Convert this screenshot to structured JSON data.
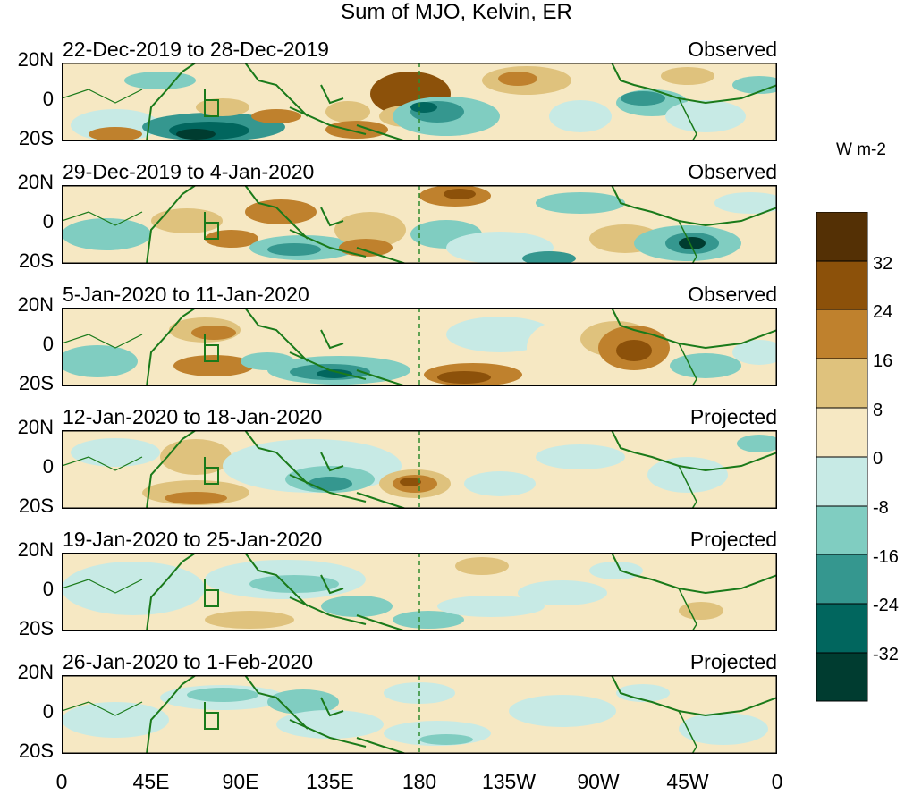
{
  "figure": {
    "title": "Sum of MJO, Kelvin, ER",
    "lat_labels": [
      "20N",
      "0",
      "20S"
    ],
    "lon_labels": [
      "0",
      "45E",
      "90E",
      "135E",
      "180",
      "135W",
      "90W",
      "45W",
      "0"
    ],
    "colorbar": {
      "units": "W m-2",
      "tick_labels": [
        "32",
        "24",
        "16",
        "8",
        "0",
        "-8",
        "-16",
        "-24",
        "-32"
      ],
      "colors": [
        "#543005",
        "#8c510a",
        "#bf812d",
        "#dfc27d",
        "#f6e8c3",
        "#c7eae5",
        "#80cdc1",
        "#35978f",
        "#01665e",
        "#003c30"
      ]
    },
    "panels": [
      {
        "period": "22-Dec-2019 to 28-Dec-2019",
        "status": "Observed"
      },
      {
        "period": "29-Dec-2019 to 4-Jan-2020",
        "status": "Observed"
      },
      {
        "period": "5-Jan-2020 to 11-Jan-2020",
        "status": "Observed"
      },
      {
        "period": "12-Jan-2020 to 18-Jan-2020",
        "status": "Projected"
      },
      {
        "period": "19-Jan-2020 to 25-Jan-2020",
        "status": "Projected"
      },
      {
        "period": "26-Jan-2020 to 1-Feb-2020",
        "status": "Projected"
      }
    ],
    "coast_color": "#1a7a1a",
    "date_line_color": "#2e8b2e"
  }
}
